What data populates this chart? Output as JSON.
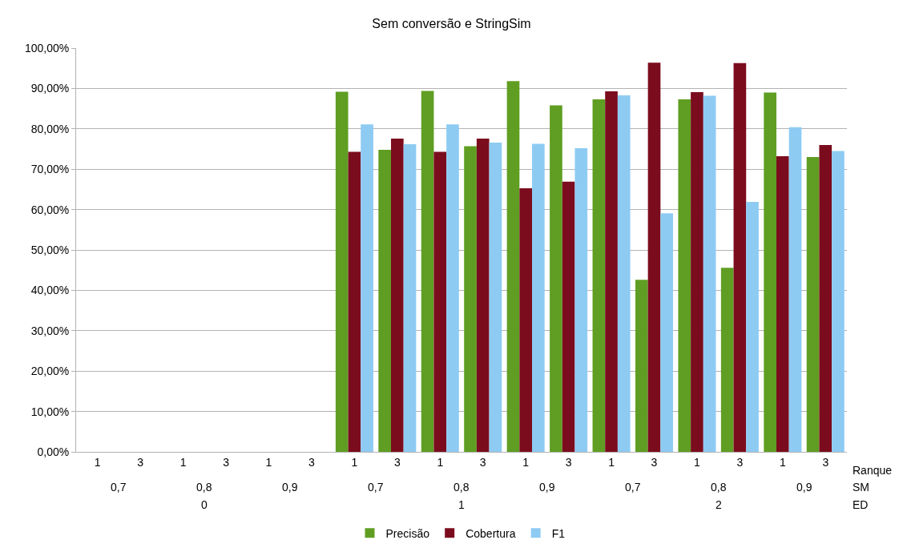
{
  "chart_data": {
    "type": "bar",
    "title": "Sem conversão e StringSim",
    "categories": [
      "1",
      "3",
      "1",
      "3",
      "1",
      "3",
      "1",
      "3",
      "1",
      "3",
      "1",
      "3",
      "1",
      "3",
      "1",
      "3",
      "1",
      "3"
    ],
    "series": [
      {
        "name": "Precisão",
        "color": "#5f9e22",
        "values": [
          null,
          null,
          null,
          null,
          null,
          null,
          89.2,
          74.8,
          89.4,
          75.7,
          91.8,
          85.8,
          87.3,
          42.6,
          87.3,
          45.6,
          89.0,
          73.0
        ]
      },
      {
        "name": "Cobertura",
        "color": "#7b0c1e",
        "values": [
          null,
          null,
          null,
          null,
          null,
          null,
          74.3,
          77.6,
          74.3,
          77.6,
          65.3,
          66.9,
          89.3,
          96.4,
          89.1,
          96.3,
          73.2,
          76.0
        ]
      },
      {
        "name": "F1",
        "color": "#8ecbf3",
        "values": [
          null,
          null,
          null,
          null,
          null,
          null,
          81.1,
          76.2,
          81.1,
          76.6,
          76.3,
          75.2,
          88.3,
          59.1,
          88.2,
          61.9,
          80.4,
          74.5
        ]
      }
    ],
    "ylim": [
      0,
      100
    ],
    "yticks": [
      {
        "value": 0,
        "label": "0,00%"
      },
      {
        "value": 10,
        "label": "10,00%"
      },
      {
        "value": 20,
        "label": "20,00%"
      },
      {
        "value": 30,
        "label": "30,00%"
      },
      {
        "value": 40,
        "label": "40,00%"
      },
      {
        "value": 50,
        "label": "50,00%"
      },
      {
        "value": 60,
        "label": "60,00%"
      },
      {
        "value": 70,
        "label": "70,00%"
      },
      {
        "value": 80,
        "label": "80,00%"
      },
      {
        "value": 90,
        "label": "90,00%"
      },
      {
        "value": 100,
        "label": "100,00%"
      }
    ],
    "annotations": [
      "Ranque",
      "SM",
      "ED",
      "0,7",
      "0,8",
      "0,9",
      "0,7",
      "0,8",
      "0,9",
      "0,7",
      "0,8",
      "0,9",
      "0",
      "1",
      "2"
    ],
    "grid": "y",
    "legend": "bottom"
  }
}
